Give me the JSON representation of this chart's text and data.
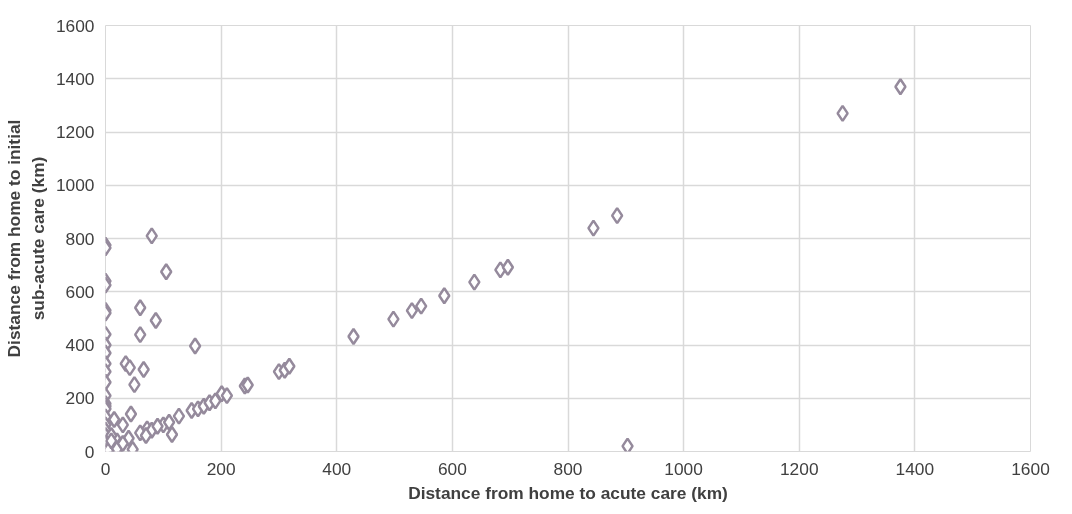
{
  "chart_data": {
    "type": "scatter",
    "xlabel": "Distance from home to acute care (km)",
    "ylabel": "Distance from home to initial sub-acute care (km)",
    "xlim": [
      0,
      1600
    ],
    "ylim": [
      0,
      1600
    ],
    "xticks": [
      0,
      200,
      400,
      600,
      800,
      1000,
      1200,
      1400,
      1600
    ],
    "yticks": [
      0,
      200,
      400,
      600,
      800,
      1000,
      1200,
      1400,
      1600
    ],
    "grid": true,
    "marker": "diamond",
    "series": [
      {
        "color": "#958a9c",
        "x": [
          0,
          0,
          0,
          0,
          0,
          0,
          0,
          0,
          0,
          0,
          0,
          0,
          0,
          0,
          0,
          0,
          0,
          0,
          0,
          0,
          0,
          0,
          80,
          105,
          60,
          87,
          60,
          155,
          66,
          35,
          42,
          50,
          44,
          15,
          30,
          72,
          47,
          100,
          110,
          115,
          127,
          149,
          160,
          170,
          180,
          190,
          201,
          210,
          241,
          246,
          300,
          310,
          318,
          429,
          498,
          530,
          546,
          586,
          638,
          683,
          696,
          844,
          885,
          903,
          1275,
          1375,
          20,
          10,
          25,
          5,
          60,
          80,
          90,
          40,
          70,
          20,
          10,
          30
        ],
        "values": [
          775,
          765,
          640,
          625,
          530,
          520,
          440,
          400,
          370,
          330,
          300,
          260,
          210,
          180,
          170,
          160,
          130,
          100,
          80,
          60,
          30,
          0,
          810,
          675,
          540,
          492,
          439,
          396,
          308,
          330,
          315,
          251,
          141,
          120,
          100,
          85,
          8,
          100,
          110,
          64,
          133,
          154,
          160,
          170,
          183,
          190,
          217,
          210,
          246,
          250,
          300,
          305,
          320,
          432,
          497,
          529,
          546,
          585,
          636,
          682,
          692,
          839,
          886,
          20,
          1270,
          1370,
          40,
          60,
          20,
          5,
          70,
          80,
          95,
          50,
          60,
          10,
          40,
          30
        ]
      }
    ]
  }
}
